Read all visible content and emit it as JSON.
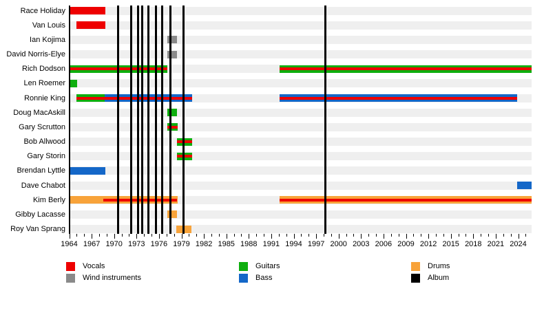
{
  "chart_data": {
    "type": "timeline",
    "description": "Band members timeline with album release markers",
    "x_axis": {
      "start_year": 1964,
      "end_year": 2025.8,
      "major_tick_labels": [
        "1964",
        "1967",
        "1970",
        "1973",
        "1976",
        "1979",
        "1982",
        "1985",
        "1988",
        "1991",
        "1994",
        "1997",
        "2000",
        "2003",
        "2006",
        "2009",
        "2012",
        "2015",
        "2018",
        "2021",
        "2024"
      ],
      "minor_tick_step": 1,
      "minor_tick_last_year": 2025
    },
    "roles": {
      "vocals": "#EE0000",
      "wind": "#8A8A8A",
      "guitars": "#0EAE0E",
      "bass": "#1467C8",
      "drums": "#F8A33A",
      "album": "#000000"
    },
    "row_stripe_color": "#EFEFEF",
    "album_years": [
      1970.5,
      1972.3,
      1973.2,
      1973.8,
      1974.6,
      1975.6,
      1976.4,
      1977.5,
      1979.3,
      1998.2
    ],
    "members": [
      {
        "name": "Race Holiday",
        "bars": [
          {
            "role": "vocals",
            "start": 1964.0,
            "end": 1968.8
          }
        ]
      },
      {
        "name": "Van Louis",
        "bars": [
          {
            "role": "vocals",
            "start": 1965.0,
            "end": 1968.8
          }
        ]
      },
      {
        "name": "Ian Kojima",
        "bars": [
          {
            "role": "wind",
            "start": 1977.1,
            "end": 1978.4
          }
        ]
      },
      {
        "name": "David Norris-Elye",
        "bars": [
          {
            "role": "wind",
            "start": 1977.1,
            "end": 1978.4
          }
        ]
      },
      {
        "name": "Rich Dodson",
        "bars": [
          {
            "role": "guitars",
            "start": 1964.0,
            "end": 1977.1,
            "overlay": {
              "role": "vocals",
              "start": 1964.0,
              "end": 1977.1
            }
          },
          {
            "role": "guitars",
            "start": 1992.1,
            "end": 2025.8,
            "overlay": {
              "role": "vocals",
              "start": 1992.1,
              "end": 2025.8
            }
          }
        ]
      },
      {
        "name": "Len Roemer",
        "bars": [
          {
            "role": "guitars",
            "start": 1964.0,
            "end": 1965.1
          }
        ]
      },
      {
        "name": "Ronnie King",
        "bars": [
          {
            "role": "guitars",
            "start": 1965.0,
            "end": 1968.75
          },
          {
            "role": "bass",
            "start": 1968.75,
            "end": 1980.4,
            "overlay": {
              "role": "vocals",
              "start": 1965.0,
              "end": 1980.4
            }
          },
          {
            "role": "bass",
            "start": 1992.1,
            "end": 2023.9,
            "overlay": {
              "role": "vocals",
              "start": 1992.1,
              "end": 2023.9
            }
          }
        ]
      },
      {
        "name": "Doug MacAskill",
        "bars": [
          {
            "role": "guitars",
            "start": 1977.1,
            "end": 1978.4
          }
        ]
      },
      {
        "name": "Gary Scrutton",
        "bars": [
          {
            "role": "guitars",
            "start": 1977.1,
            "end": 1978.5,
            "overlay": {
              "role": "vocals",
              "start": 1977.1,
              "end": 1978.5
            }
          }
        ]
      },
      {
        "name": "Bob Allwood",
        "bars": [
          {
            "role": "guitars",
            "start": 1978.4,
            "end": 1980.4,
            "overlay": {
              "role": "vocals",
              "start": 1978.4,
              "end": 1980.4
            }
          }
        ]
      },
      {
        "name": "Gary Storin",
        "bars": [
          {
            "role": "guitars",
            "start": 1978.4,
            "end": 1980.4,
            "overlay": {
              "role": "vocals",
              "start": 1978.4,
              "end": 1980.4
            }
          }
        ]
      },
      {
        "name": "Brendan Lyttle",
        "bars": [
          {
            "role": "bass",
            "start": 1964.0,
            "end": 1968.8
          }
        ]
      },
      {
        "name": "Dave Chabot",
        "bars": [
          {
            "role": "bass",
            "start": 2023.9,
            "end": 2025.8
          }
        ]
      },
      {
        "name": "Kim Berly",
        "bars": [
          {
            "role": "drums",
            "start": 1964.0,
            "end": 1978.5,
            "overlay": {
              "role": "vocals",
              "start": 1968.6,
              "end": 1978.4
            }
          },
          {
            "role": "drums",
            "start": 1992.1,
            "end": 2025.8,
            "overlay": {
              "role": "vocals",
              "start": 1992.1,
              "end": 2025.8
            }
          }
        ]
      },
      {
        "name": "Gibby Lacasse",
        "bars": [
          {
            "role": "drums",
            "start": 1977.1,
            "end": 1978.4
          }
        ]
      },
      {
        "name": "Roy Van Sprang",
        "bars": [
          {
            "role": "drums",
            "start": 1978.3,
            "end": 1980.3
          }
        ]
      }
    ],
    "legend": {
      "columns": [
        [
          {
            "label": "Vocals",
            "role": "vocals"
          },
          {
            "label": "Wind instruments",
            "role": "wind"
          }
        ],
        [
          {
            "label": "Guitars",
            "role": "guitars"
          },
          {
            "label": "Bass",
            "role": "bass"
          }
        ],
        [
          {
            "label": "Drums",
            "role": "drums"
          },
          {
            "label": "Album",
            "role": "album"
          }
        ]
      ]
    }
  }
}
